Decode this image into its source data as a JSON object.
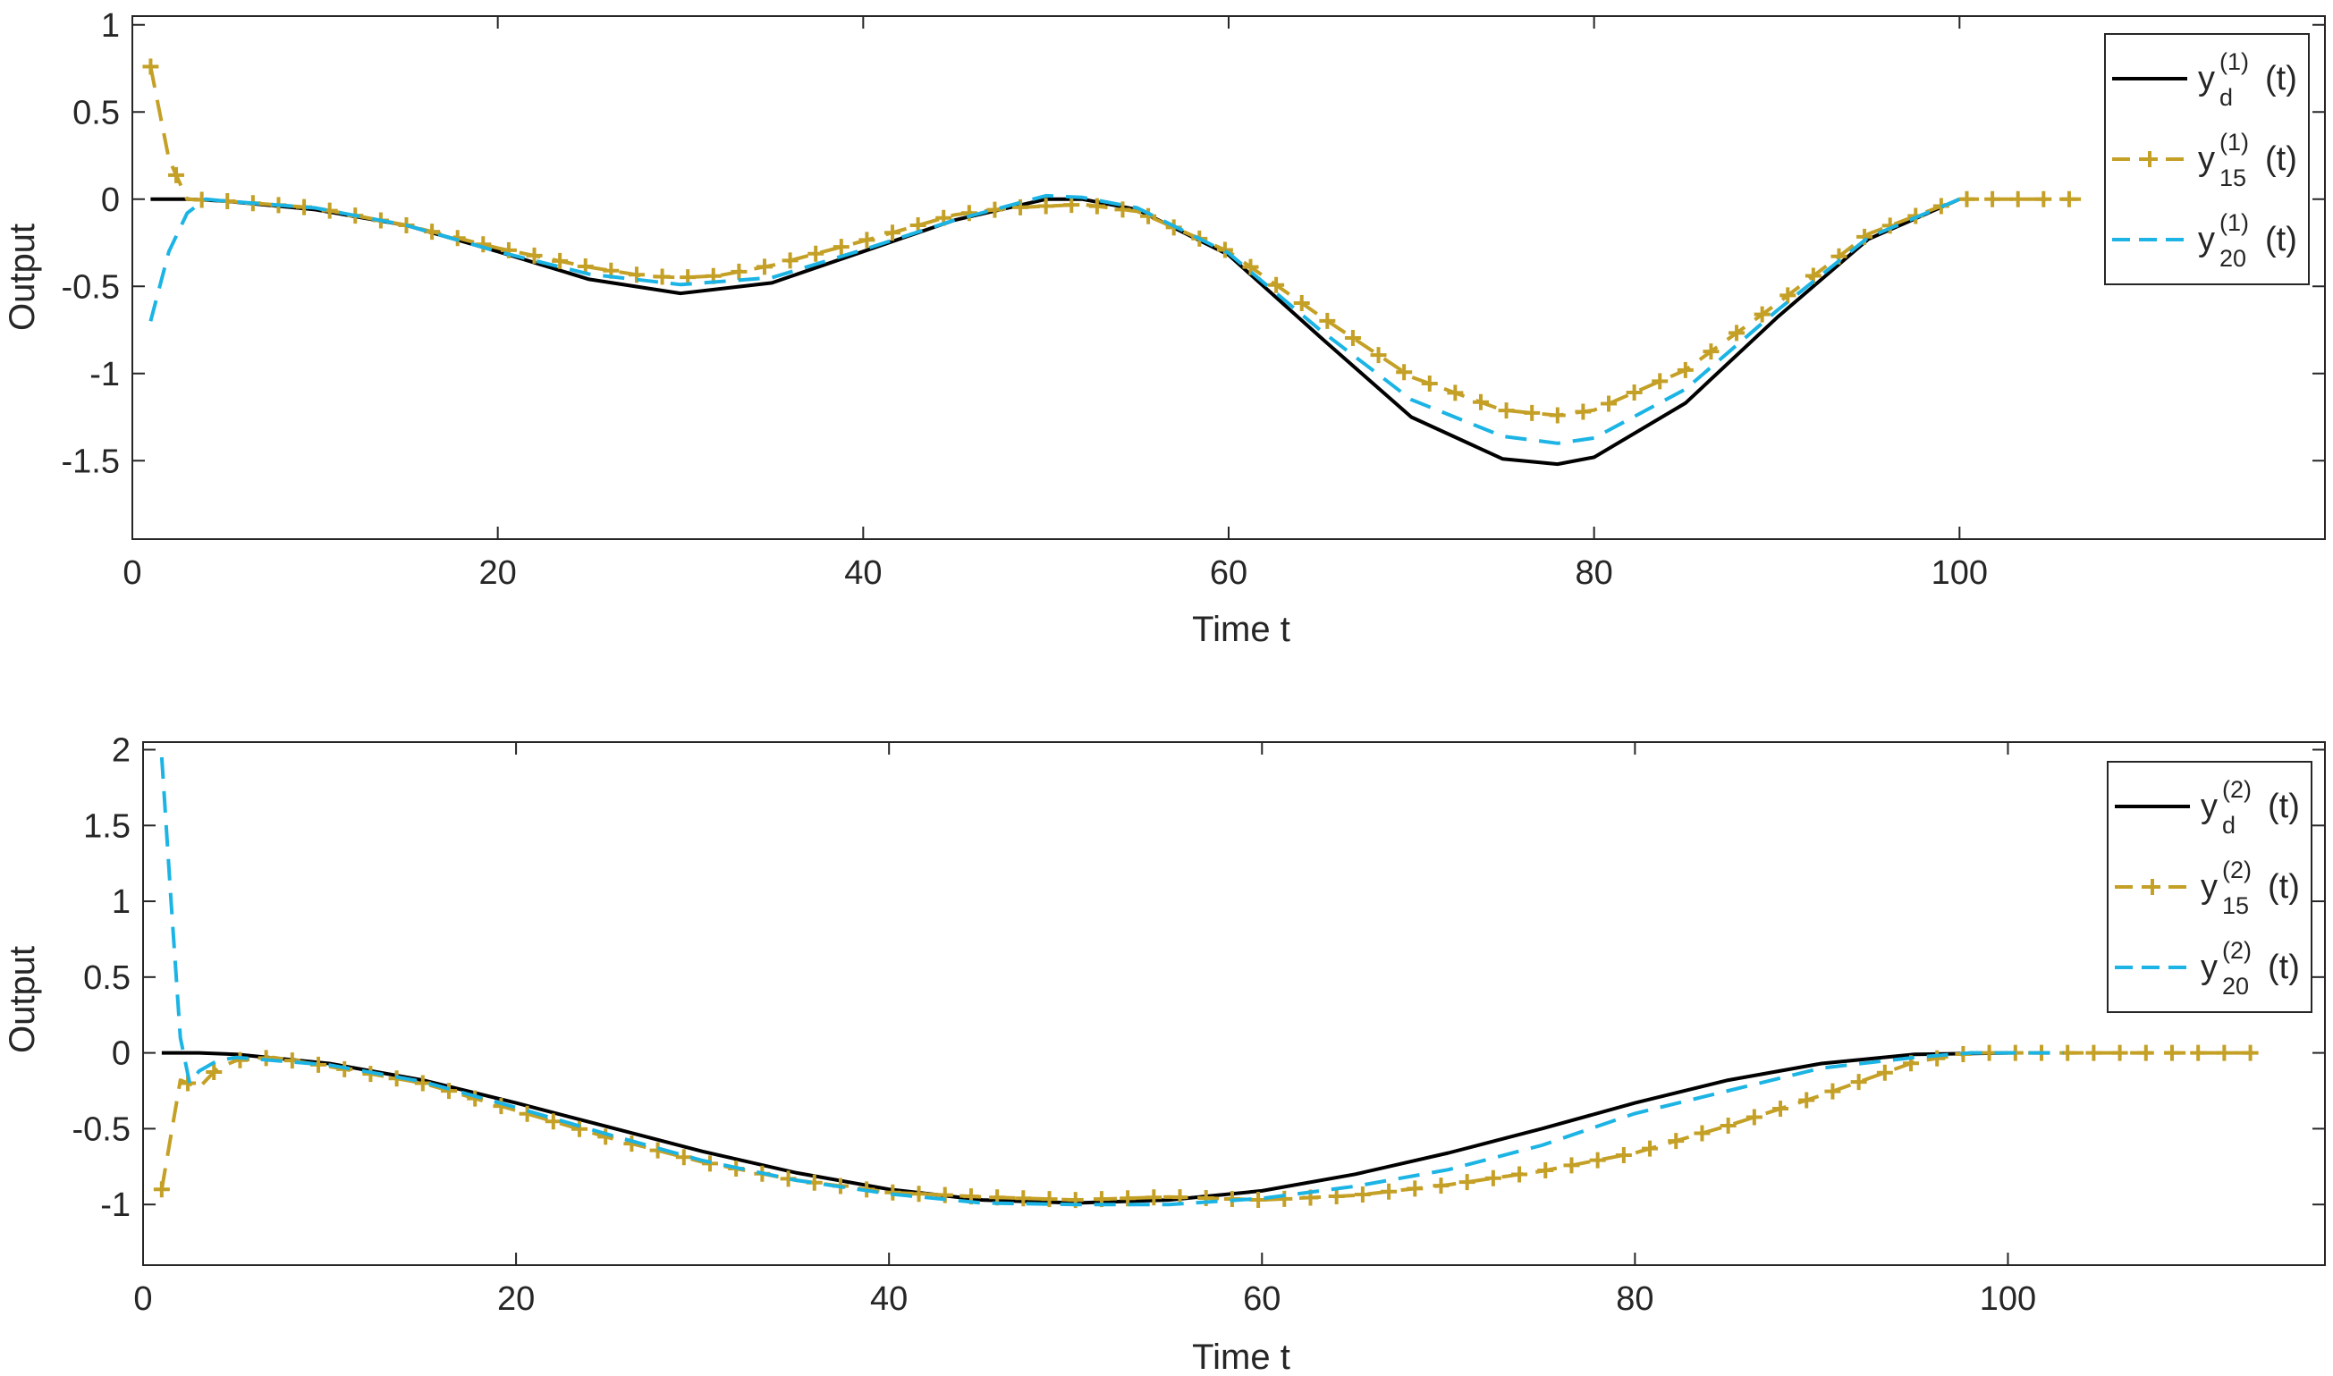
{
  "chart_data": [
    {
      "type": "line",
      "xlabel": "Time t",
      "ylabel": "Output",
      "xlim": [
        0,
        120
      ],
      "ylim": [
        -1.95,
        1.05
      ],
      "xticks": [
        0,
        20,
        40,
        60,
        80,
        100
      ],
      "yticks": [
        1,
        0.5,
        0,
        -0.5,
        -1,
        -1.5
      ],
      "ytick_labels": [
        "1",
        "0.5",
        "0",
        "-0.5",
        "-1",
        "-1.5"
      ],
      "legend_position": "top-right",
      "series": [
        {
          "name": "y_d^(1)(t)",
          "legend": {
            "base": "y",
            "sub": "d",
            "sup": "(1)",
            "tail": "(t)"
          },
          "color": "#000000",
          "style": "solid",
          "x": [
            1,
            3,
            5,
            10,
            15,
            20,
            25,
            30,
            35,
            40,
            45,
            50,
            52,
            55,
            60,
            65,
            70,
            75,
            78,
            80,
            85,
            90,
            95,
            100
          ],
          "y": [
            0,
            0,
            -0.01,
            -0.06,
            -0.15,
            -0.3,
            -0.46,
            -0.54,
            -0.48,
            -0.3,
            -0.12,
            0,
            0,
            -0.06,
            -0.32,
            -0.79,
            -1.25,
            -1.49,
            -1.52,
            -1.48,
            -1.17,
            -0.68,
            -0.23,
            0
          ]
        },
        {
          "name": "y_15^(1)(t)",
          "legend": {
            "base": "y",
            "sub": "15",
            "sup": "(1)",
            "tail": "(t)"
          },
          "color": "#C4A026",
          "style": "dashed",
          "marker": "plus",
          "x": [
            1,
            2,
            3,
            5,
            10,
            15,
            20,
            25,
            28,
            30,
            32,
            35,
            40,
            45,
            48,
            50,
            52,
            55,
            60,
            65,
            70,
            75,
            78,
            80,
            85,
            90,
            95,
            100,
            105,
            107
          ],
          "y": [
            0.76,
            0.23,
            0,
            -0.01,
            -0.05,
            -0.15,
            -0.28,
            -0.39,
            -0.44,
            -0.45,
            -0.44,
            -0.38,
            -0.24,
            -0.09,
            -0.05,
            -0.04,
            -0.03,
            -0.07,
            -0.3,
            -0.67,
            -1.02,
            -1.21,
            -1.24,
            -1.21,
            -0.98,
            -0.6,
            -0.2,
            0,
            0,
            0
          ]
        },
        {
          "name": "y_20^(1)(t)",
          "legend": {
            "base": "y",
            "sub": "20",
            "sup": "(1)",
            "tail": "(t)"
          },
          "color": "#1BB4E4",
          "style": "dashed",
          "x": [
            1,
            2,
            3,
            4,
            5,
            10,
            15,
            20,
            25,
            30,
            35,
            40,
            45,
            50,
            52,
            55,
            60,
            65,
            70,
            75,
            78,
            80,
            85,
            90,
            95,
            100
          ],
          "y": [
            -0.7,
            -0.3,
            -0.08,
            0,
            -0.01,
            -0.05,
            -0.15,
            -0.3,
            -0.43,
            -0.49,
            -0.45,
            -0.29,
            -0.12,
            0.02,
            0.01,
            -0.05,
            -0.31,
            -0.75,
            -1.15,
            -1.36,
            -1.4,
            -1.37,
            -1.09,
            -0.64,
            -0.22,
            0
          ]
        }
      ]
    },
    {
      "type": "line",
      "xlabel": "Time t",
      "ylabel": "Output",
      "xlim": [
        0,
        117
      ],
      "ylim": [
        -1.4,
        2.05
      ],
      "xticks": [
        0,
        20,
        40,
        60,
        80,
        100
      ],
      "yticks": [
        2,
        1.5,
        1,
        0.5,
        0,
        -0.5,
        -1
      ],
      "ytick_labels": [
        "2",
        "1.5",
        "1",
        "0.5",
        "0",
        "-0.5",
        "-1"
      ],
      "legend_position": "top-right",
      "series": [
        {
          "name": "y_d^(2)(t)",
          "legend": {
            "base": "y",
            "sub": "d",
            "sup": "(2)",
            "tail": "(t)"
          },
          "color": "#000000",
          "style": "solid",
          "x": [
            1,
            3,
            5,
            10,
            15,
            20,
            25,
            30,
            35,
            40,
            45,
            50,
            55,
            60,
            65,
            70,
            75,
            80,
            85,
            90,
            95,
            100
          ],
          "y": [
            0,
            0,
            -0.01,
            -0.07,
            -0.18,
            -0.33,
            -0.49,
            -0.65,
            -0.79,
            -0.9,
            -0.97,
            -0.99,
            -0.97,
            -0.91,
            -0.8,
            -0.66,
            -0.5,
            -0.33,
            -0.18,
            -0.07,
            -0.01,
            0
          ]
        },
        {
          "name": "y_15^(2)(t)",
          "legend": {
            "base": "y",
            "sub": "15",
            "sup": "(2)",
            "tail": "(t)"
          },
          "color": "#C4A026",
          "style": "dashed",
          "marker": "plus",
          "x": [
            1,
            2,
            3,
            4,
            5,
            7,
            10,
            15,
            20,
            25,
            30,
            35,
            40,
            45,
            50,
            55,
            60,
            65,
            70,
            75,
            80,
            85,
            90,
            95,
            98,
            100,
            105,
            110,
            113
          ],
          "y": [
            -0.9,
            -0.18,
            -0.23,
            -0.1,
            -0.05,
            -0.03,
            -0.09,
            -0.2,
            -0.38,
            -0.56,
            -0.72,
            -0.84,
            -0.92,
            -0.95,
            -0.97,
            -0.95,
            -0.97,
            -0.94,
            -0.87,
            -0.78,
            -0.66,
            -0.48,
            -0.28,
            -0.06,
            0,
            0,
            0,
            0,
            0
          ]
        },
        {
          "name": "y_20^(2)(t)",
          "legend": {
            "base": "y",
            "sub": "20",
            "sup": "(2)",
            "tail": "(t)"
          },
          "color": "#1BB4E4",
          "style": "dashed",
          "x": [
            1,
            1.5,
            2,
            2.5,
            3,
            4,
            5,
            10,
            15,
            20,
            25,
            30,
            35,
            40,
            45,
            50,
            55,
            60,
            65,
            70,
            75,
            80,
            85,
            90,
            95,
            98,
            103
          ],
          "y": [
            1.95,
            1.0,
            0.1,
            -0.2,
            -0.12,
            -0.05,
            -0.03,
            -0.08,
            -0.19,
            -0.36,
            -0.54,
            -0.71,
            -0.84,
            -0.93,
            -0.99,
            -1.0,
            -1.0,
            -0.96,
            -0.88,
            -0.77,
            -0.61,
            -0.4,
            -0.25,
            -0.1,
            -0.03,
            0,
            0
          ]
        }
      ]
    }
  ]
}
